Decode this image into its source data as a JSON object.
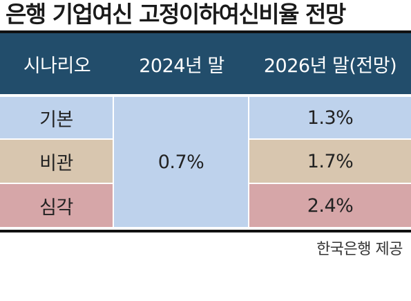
{
  "title": "은행 기업여신 고정이하여신비율 전망",
  "table": {
    "headers": [
      "시나리오",
      "2024년 말",
      "2026년 말(전망)"
    ],
    "rows": [
      {
        "scenario": "기본",
        "value_2026": "1.3%",
        "color": "#bed2ec"
      },
      {
        "scenario": "비관",
        "value_2026": "1.7%",
        "color": "#d8c6af"
      },
      {
        "scenario": "심각",
        "value_2026": "2.4%",
        "color": "#d6a6a8"
      }
    ],
    "value_2024": "0.7%",
    "value_2024_color": "#bed2ec",
    "header_color": "#224d6b"
  },
  "source": "한국은행 제공"
}
